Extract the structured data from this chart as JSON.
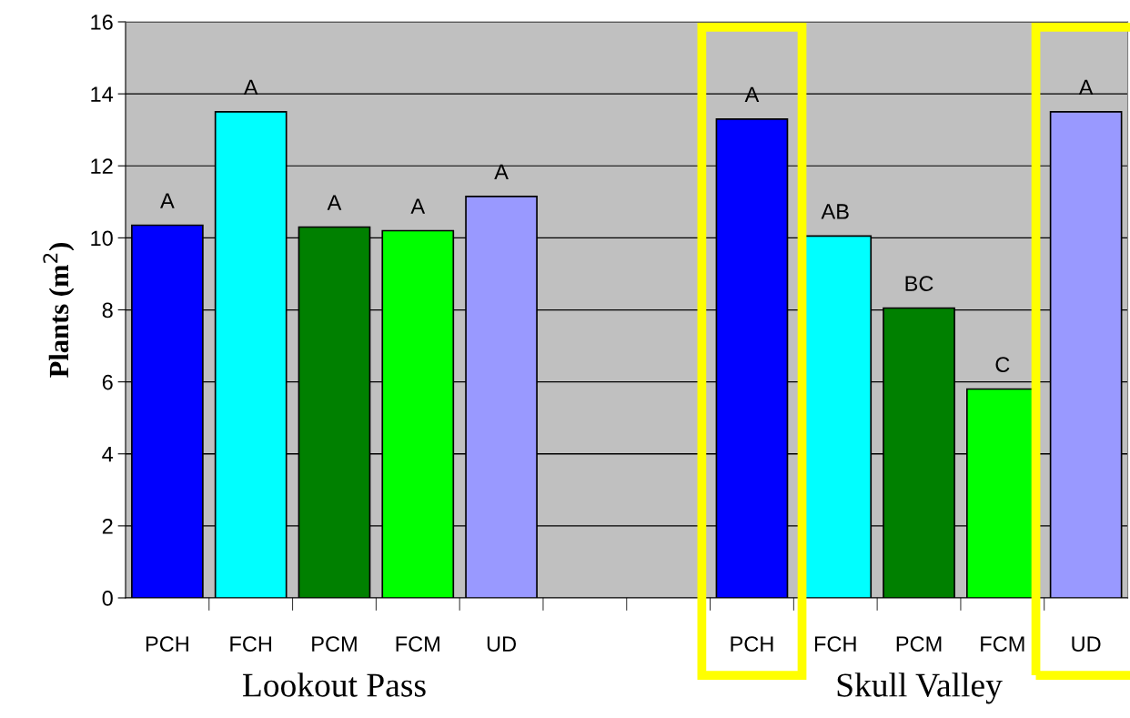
{
  "chart_data": {
    "type": "bar",
    "ylabel": "Plants (m$^{2}$)",
    "categories": [
      "PCH",
      "FCH",
      "PCM",
      "FCM",
      "UD",
      null,
      null,
      "PCH",
      "FCH",
      "PCM",
      "FCM",
      "UD"
    ],
    "values": [
      10.35,
      13.5,
      10.3,
      10.2,
      11.15,
      null,
      null,
      13.3,
      10.05,
      8.05,
      5.8,
      13.5
    ],
    "colors": [
      "#0000ff",
      "#00ffff",
      "#008000",
      "#00ff00",
      "#9999ff",
      null,
      null,
      "#0000ff",
      "#00ffff",
      "#008000",
      "#00ff00",
      "#9999ff"
    ],
    "value_labels": [
      "A",
      "A",
      "A",
      "A",
      "A",
      null,
      null,
      "A",
      "AB",
      "BC",
      "C",
      "A"
    ],
    "ylim": [
      0,
      16
    ],
    "yticks": [
      0,
      2,
      4,
      6,
      8,
      10,
      12,
      14,
      16
    ],
    "grid": "y",
    "annotations": [
      "Lookout Pass",
      "Skull Valley"
    ]
  }
}
